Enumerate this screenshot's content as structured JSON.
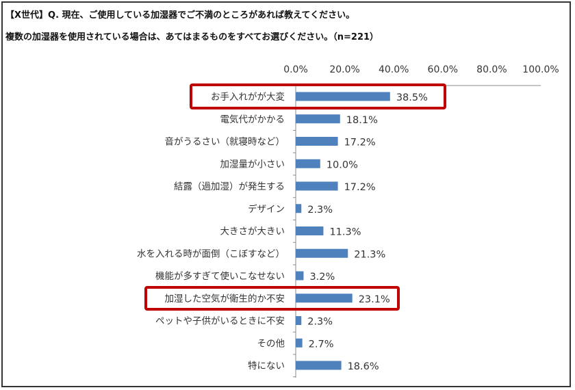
{
  "header": {
    "title_line1": "【X世代】Q. 現在、ご使用している加湿器でご不満のところがあれば教えてください。",
    "title_line2": "複数の加湿器を使用されている場合は、あてはまるものをすべてお選びください。（n=221）"
  },
  "chart_data": {
    "type": "bar",
    "orientation": "horizontal",
    "categories": [
      "お手入れがが大変",
      "電気代がかかる",
      "音がうるさい（就寝時など）",
      "加湿量が小さい",
      "結露（過加湿）が発生する",
      "デザイン",
      "大きさが大きい",
      "水を入れる時が面倒（こぼすなど）",
      "機能が多すぎて使いこなせない",
      "加湿した空気が衛生的か不安",
      "ペットや子供がいるときに不安",
      "その他",
      "特にない"
    ],
    "values": [
      38.5,
      18.1,
      17.2,
      10.0,
      17.2,
      2.3,
      11.3,
      21.3,
      3.2,
      23.1,
      2.3,
      2.7,
      18.6
    ],
    "data_labels": [
      "38.5%",
      "18.1%",
      "17.2%",
      "10.0%",
      "17.2%",
      "2.3%",
      "11.3%",
      "21.3%",
      "3.2%",
      "23.1%",
      "2.3%",
      "2.7%",
      "18.6%"
    ],
    "xlim": [
      0,
      100
    ],
    "x_ticks": [
      "0.0%",
      "20.0%",
      "40.0%",
      "60.0%",
      "80.0%",
      "100.0%"
    ],
    "x_tick_values": [
      0,
      20,
      40,
      60,
      80,
      100
    ],
    "axis_position": "top",
    "grid": false,
    "bar_color": "#4f81bd",
    "highlighted_categories": [
      0,
      9
    ],
    "highlight_color": "#c00000"
  }
}
